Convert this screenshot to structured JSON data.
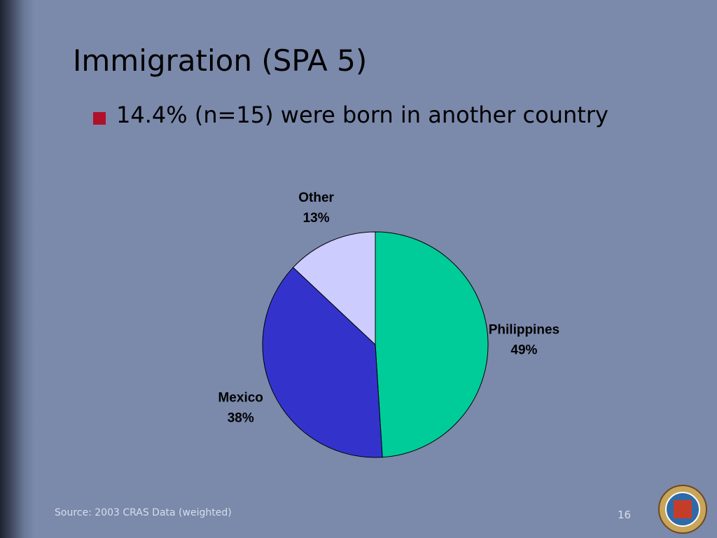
{
  "slide": {
    "title": "Immigration (SPA 5)",
    "bullet": "14.4% (n=15) were born in another country",
    "source": "Source: 2003 CRAS Data (weighted)",
    "page_number": "16"
  },
  "chart_data": {
    "type": "pie",
    "categories": [
      "Philippines",
      "Mexico",
      "Other"
    ],
    "values": [
      49,
      38,
      13
    ],
    "value_labels": [
      "49%",
      "38%",
      "13%"
    ],
    "colors": [
      "#00cc99",
      "#3333cc",
      "#ccccff"
    ]
  }
}
